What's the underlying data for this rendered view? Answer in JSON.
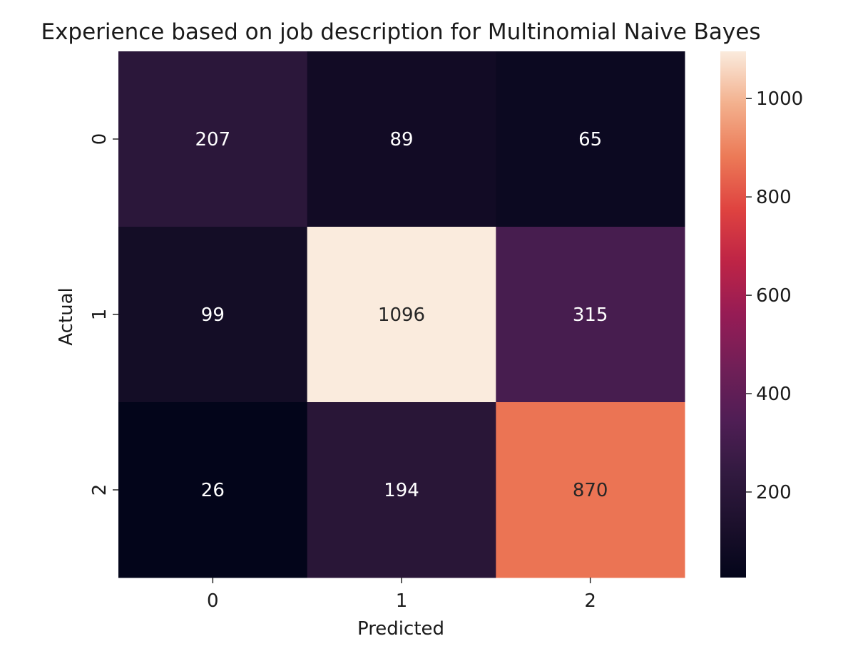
{
  "chart_data": {
    "type": "heatmap",
    "title": "Experience based on job description for Multinomial Naive Bayes",
    "xlabel": "Predicted",
    "ylabel": "Actual",
    "x_categories": [
      "0",
      "1",
      "2"
    ],
    "y_categories": [
      "0",
      "1",
      "2"
    ],
    "values": [
      [
        207,
        89,
        65
      ],
      [
        99,
        1096,
        315
      ],
      [
        26,
        194,
        870
      ]
    ],
    "colorbar": {
      "range": [
        26,
        1096
      ],
      "ticks": [
        200,
        400,
        600,
        800,
        1000
      ],
      "colormap": "rocket"
    },
    "annotation_colors": {
      "light_text": "#ffffff",
      "dark_text": "#262626"
    }
  }
}
